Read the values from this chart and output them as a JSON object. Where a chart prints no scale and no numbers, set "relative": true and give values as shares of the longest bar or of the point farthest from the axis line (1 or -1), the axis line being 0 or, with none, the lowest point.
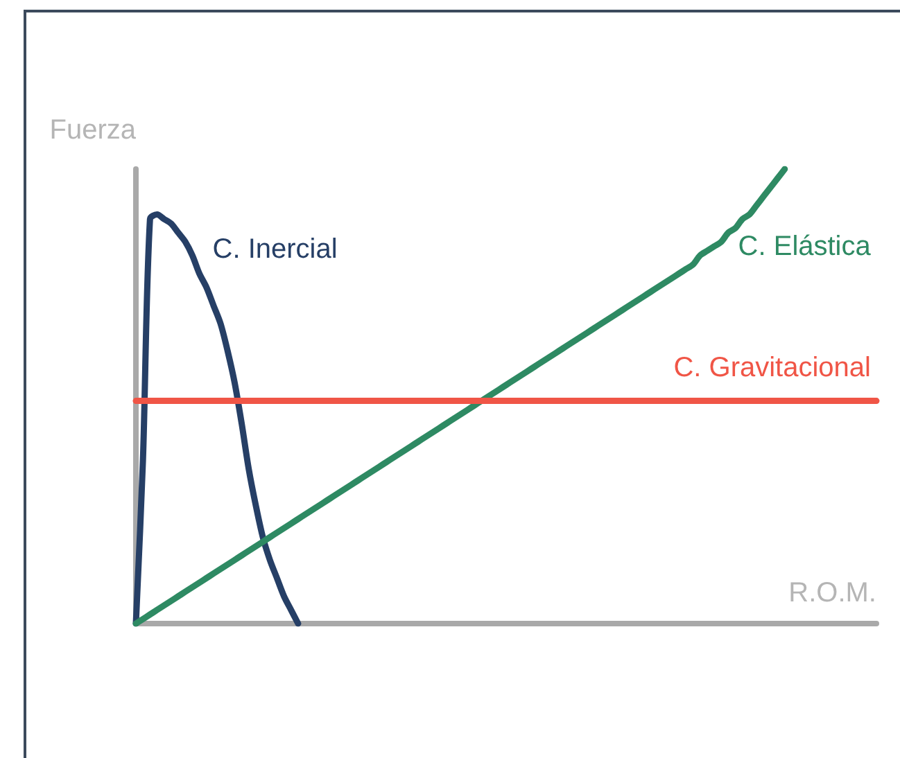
{
  "chart_data": {
    "type": "line",
    "relative": true,
    "xlabel": "R.O.M.",
    "ylabel": "Fuerza",
    "legend": false,
    "grid": false,
    "marker": "none",
    "line_style": "solid",
    "categories": [
      null,
      null,
      null,
      null,
      null,
      null,
      null,
      null,
      null,
      null,
      null,
      null,
      null,
      null,
      null,
      null,
      null,
      null,
      null,
      null,
      null,
      null,
      null,
      null,
      null,
      null,
      null,
      null,
      null,
      null,
      null,
      null,
      null,
      null,
      null,
      null,
      null,
      null,
      null,
      null,
      null,
      null,
      null,
      null,
      null,
      null,
      null,
      null,
      null,
      null,
      null,
      null,
      null,
      null,
      null,
      null,
      null,
      null,
      null,
      null,
      null,
      null,
      null,
      null,
      null,
      null,
      null,
      null,
      null,
      null,
      null,
      null,
      null,
      null,
      null,
      null,
      null,
      null,
      null,
      null,
      null,
      null,
      null,
      null,
      null,
      null,
      null,
      null,
      null,
      null,
      null,
      null,
      null,
      null,
      null,
      null,
      null,
      null,
      null,
      null,
      null,
      null,
      null,
      null,
      null,
      null
    ],
    "series": [
      {
        "name": "C. Inercial",
        "color": "#263f66",
        "values": [
          0,
          0.36,
          0.89,
          0.9,
          0.89,
          0.88,
          0.86,
          0.84,
          0.81,
          0.77,
          0.74,
          0.7,
          0.66,
          0.6,
          0.53,
          0.44,
          0.34,
          0.26,
          0.19,
          0.14,
          0.1,
          0.06,
          0.03,
          0,
          null,
          null,
          null,
          null,
          null,
          null,
          null,
          null,
          null,
          null,
          null,
          null,
          null,
          null,
          null,
          null,
          null,
          null,
          null,
          null,
          null,
          null,
          null,
          null,
          null,
          null,
          null,
          null,
          null,
          null,
          null,
          null,
          null,
          null,
          null,
          null,
          null,
          null,
          null,
          null,
          null,
          null,
          null,
          null,
          null,
          null,
          null,
          null,
          null,
          null,
          null,
          null,
          null,
          null,
          null,
          null,
          null,
          null,
          null,
          null,
          null,
          null,
          null,
          null,
          null,
          null,
          null,
          null,
          null,
          null,
          null,
          null,
          null,
          null,
          null,
          null,
          null,
          null,
          null,
          null,
          null,
          null
        ]
      },
      {
        "name": "C. Elástica",
        "color": "#2e8a63",
        "values": [
          0,
          0.01,
          0.02,
          0.03,
          0.04,
          0.05,
          0.06,
          0.07,
          0.08,
          0.09,
          0.1,
          0.11,
          0.12,
          0.13,
          0.14,
          0.15,
          0.16,
          0.17,
          0.18,
          0.19,
          0.2,
          0.21,
          0.22,
          0.23,
          0.24,
          0.25,
          0.26,
          0.27,
          0.28,
          0.29,
          0.3,
          0.31,
          0.32,
          0.33,
          0.34,
          0.35,
          0.36,
          0.37,
          0.38,
          0.39,
          0.4,
          0.41,
          0.42,
          0.43,
          0.44,
          0.45,
          0.46,
          0.47,
          0.48,
          0.49,
          0.5,
          0.51,
          0.52,
          0.53,
          0.54,
          0.55,
          0.56,
          0.57,
          0.58,
          0.59,
          0.6,
          0.61,
          0.62,
          0.63,
          0.64,
          0.65,
          0.66,
          0.67,
          0.68,
          0.69,
          0.7,
          0.71,
          0.72,
          0.73,
          0.74,
          0.75,
          0.76,
          0.77,
          0.78,
          0.79,
          0.81,
          0.82,
          0.83,
          0.84,
          0.86,
          0.87,
          0.89,
          0.9,
          0.92,
          0.94,
          0.96,
          0.98,
          1,
          null,
          null,
          null,
          null,
          null,
          null,
          null,
          null,
          null,
          null,
          null,
          null,
          null
        ]
      },
      {
        "name": "C. Gravitacional",
        "color": "#f05546",
        "values": [
          0.49,
          0.49,
          0.49,
          0.49,
          0.49,
          0.49,
          0.49,
          0.49,
          0.49,
          0.49,
          0.49,
          0.49,
          0.49,
          0.49,
          0.49,
          0.49,
          0.49,
          0.49,
          0.49,
          0.49,
          0.49,
          0.49,
          0.49,
          0.49,
          0.49,
          0.49,
          0.49,
          0.49,
          0.49,
          0.49,
          0.49,
          0.49,
          0.49,
          0.49,
          0.49,
          0.49,
          0.49,
          0.49,
          0.49,
          0.49,
          0.49,
          0.49,
          0.49,
          0.49,
          0.49,
          0.49,
          0.49,
          0.49,
          0.49,
          0.49,
          0.49,
          0.49,
          0.49,
          0.49,
          0.49,
          0.49,
          0.49,
          0.49,
          0.49,
          0.49,
          0.49,
          0.49,
          0.49,
          0.49,
          0.49,
          0.49,
          0.49,
          0.49,
          0.49,
          0.49,
          0.49,
          0.49,
          0.49,
          0.49,
          0.49,
          0.49,
          0.49,
          0.49,
          0.49,
          0.49,
          0.49,
          0.49,
          0.49,
          0.49,
          0.49,
          0.49,
          0.49,
          0.49,
          0.49,
          0.49,
          0.49,
          0.49,
          0.49,
          0.49,
          0.49,
          0.49,
          0.49,
          0.49,
          0.49,
          0.49,
          0.49,
          0.49,
          0.49,
          0.49,
          0.49,
          0.49
        ]
      }
    ]
  }
}
